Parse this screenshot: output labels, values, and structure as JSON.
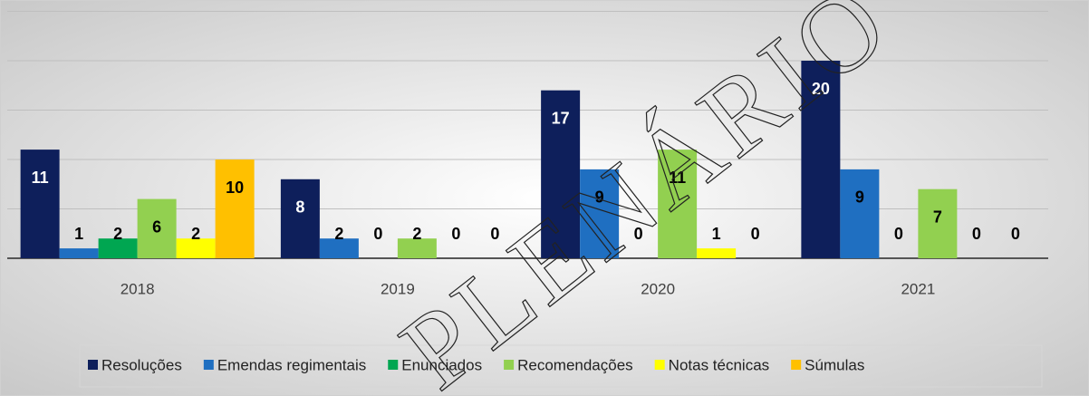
{
  "chart_data": {
    "type": "bar",
    "categories": [
      "2018",
      "2019",
      "2020",
      "2021"
    ],
    "series": [
      {
        "name": "Resoluções",
        "color": "#0e1f5b",
        "values": [
          11,
          8,
          17,
          20
        ]
      },
      {
        "name": "Emendas regimentais",
        "color": "#1f6fc1",
        "values": [
          1,
          2,
          9,
          9
        ]
      },
      {
        "name": "Enunciados",
        "color": "#00a651",
        "values": [
          2,
          0,
          0,
          0
        ]
      },
      {
        "name": "Recomendações",
        "color": "#92d050",
        "values": [
          6,
          2,
          11,
          7
        ]
      },
      {
        "name": "Notas técnicas",
        "color": "#ffff00",
        "values": [
          2,
          0,
          1,
          0
        ]
      },
      {
        "name": "Súmulas",
        "color": "#ffc000",
        "values": [
          10,
          0,
          0,
          0
        ]
      }
    ],
    "ylim": [
      0,
      25
    ],
    "yticks": [
      0,
      5,
      10,
      15,
      20,
      25
    ],
    "grid": true,
    "legend": "bottom",
    "watermark": "PLENÁRIO"
  }
}
